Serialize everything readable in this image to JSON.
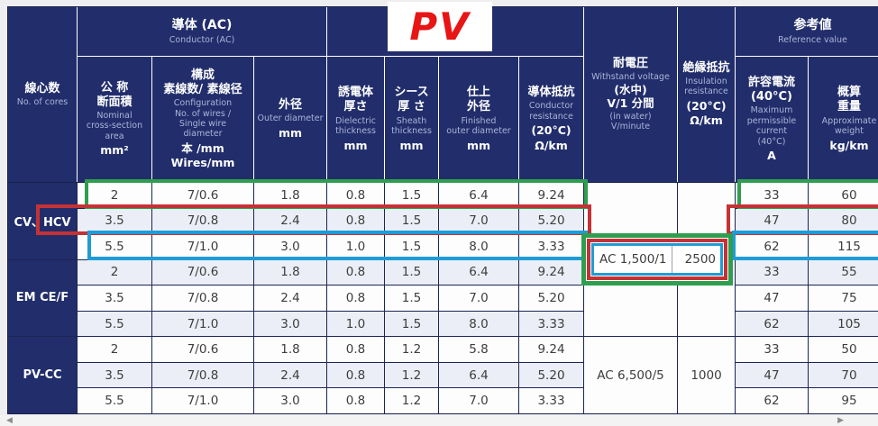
{
  "pv_badge": {
    "text": "PV",
    "color": "#e81515"
  },
  "header": {
    "cores": {
      "jp": "線心数",
      "en": "No. of cores"
    },
    "conductor_group": {
      "jp": "導体 (AC)",
      "en": "Conductor (AC)"
    },
    "reference_group": {
      "jp": "参考値",
      "en": "Reference value"
    },
    "area": {
      "jp": "公 称\n断面積",
      "en": "Nominal\ncross-section\narea",
      "unit": "mm²"
    },
    "config": {
      "jp": "構成\n素線数/ 素線径",
      "en": "Configuration\nNo. of wires /\nSingle wire\ndiameter",
      "unit": "本 /mm\nWires/mm"
    },
    "outer_diameter": {
      "jp": "外径",
      "en": "Outer diameter",
      "unit": "mm"
    },
    "dielectric": {
      "jp": "誘電体\n厚さ",
      "en": "Dielectric\nthickness",
      "unit": "mm"
    },
    "sheath": {
      "jp": "シース\n厚 さ",
      "en": "Sheath\nthickness",
      "unit": "mm"
    },
    "finished": {
      "jp": "仕上\n外径",
      "en": "Finished\nouter diameter",
      "unit": "mm"
    },
    "resistance": {
      "jp": "導体抵抗",
      "en": "Conductor\nresistance",
      "unit": "(20°C)\nΩ/km"
    },
    "withstand": {
      "jp": "耐電圧",
      "en": "Withstand voltage",
      "jp2": "(水中)\nV/1 分間",
      "en2": "(in water)\nV/minute"
    },
    "insulation": {
      "jp": "絶縁抵抗",
      "en": "Insulation\nresistance",
      "unit": "(20°C)\nΩ/km"
    },
    "current": {
      "jp": "許容電流\n(40°C)",
      "en": "Maximum\npermissible\ncurrent\n(40°C)",
      "unit": "A"
    },
    "weight": {
      "jp": "概算\n重量",
      "en": "Approximate\nweight",
      "unit": "kg/km"
    }
  },
  "body": {
    "groups": [
      {
        "label": "CV、HCV",
        "rows": [
          [
            "2",
            "7/0.6",
            "1.8",
            "0.8",
            "1.5",
            "6.4",
            "9.24",
            "33",
            "60"
          ],
          [
            "3.5",
            "7/0.8",
            "2.4",
            "0.8",
            "1.5",
            "7.0",
            "5.20",
            "47",
            "80"
          ],
          [
            "5.5",
            "7/1.0",
            "3.0",
            "1.0",
            "1.5",
            "8.0",
            "3.33",
            "62",
            "115"
          ]
        ]
      },
      {
        "label": "EM CE/F",
        "rows": [
          [
            "2",
            "7/0.6",
            "1.8",
            "0.8",
            "1.5",
            "6.4",
            "9.24",
            "33",
            "55"
          ],
          [
            "3.5",
            "7/0.8",
            "2.4",
            "0.8",
            "1.5",
            "7.0",
            "5.20",
            "47",
            "75"
          ],
          [
            "5.5",
            "7/1.0",
            "3.0",
            "1.0",
            "1.5",
            "8.0",
            "3.33",
            "62",
            "105"
          ]
        ]
      },
      {
        "label": "PV-CC",
        "rows": [
          [
            "2",
            "7/0.6",
            "1.8",
            "0.8",
            "1.2",
            "5.8",
            "9.24",
            "33",
            "50"
          ],
          [
            "3.5",
            "7/0.8",
            "2.4",
            "0.8",
            "1.2",
            "6.4",
            "5.20",
            "47",
            "70"
          ],
          [
            "5.5",
            "7/1.0",
            "3.0",
            "0.8",
            "1.2",
            "7.0",
            "3.33",
            "62",
            "95"
          ]
        ]
      }
    ],
    "voltage_box": {
      "withstand": "AC 1,500/1",
      "insulation": "2500"
    },
    "pvcc_merged": {
      "withstand": "AC 6,500/5",
      "insulation": "1000"
    }
  },
  "highlight_colors": {
    "green": "#2f9e4f",
    "red": "#c43236",
    "blue": "#1f9cd7"
  },
  "scrollbar": {
    "left": "◀",
    "right": "▶"
  }
}
